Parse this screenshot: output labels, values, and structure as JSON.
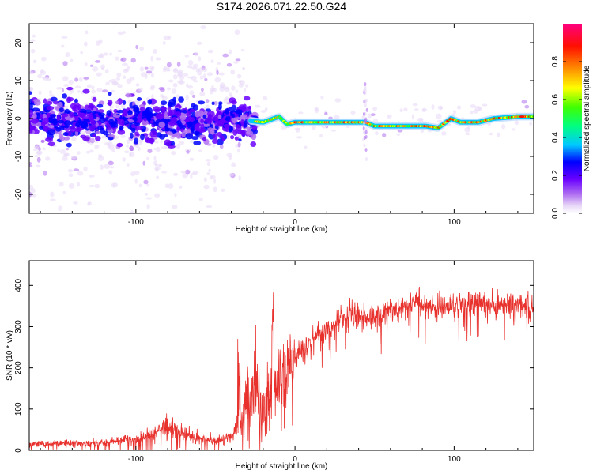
{
  "figure": {
    "title": "S174.2026.071.22.50.G24"
  },
  "chart_data": [
    {
      "type": "heatmap",
      "title": "S174.2026.071.22.50.G24",
      "xlabel": "Height of straight line (km)",
      "ylabel": "Frequency (Hz)",
      "xlim": [
        -167,
        150
      ],
      "ylim": [
        -25,
        25
      ],
      "xticks": [
        -100,
        0,
        100
      ],
      "xtick_labels": [
        "-100",
        "0",
        "100"
      ],
      "yticks": [
        -20,
        -10,
        0,
        10,
        20
      ],
      "ytick_labels": [
        "-20",
        "-10",
        "0",
        "10",
        "20"
      ],
      "colorbar": {
        "label": "Normalized spectral amplitude",
        "range": [
          0,
          1
        ],
        "ticks": [
          0.0,
          0.2,
          0.4,
          0.6,
          0.8
        ],
        "tick_labels": [
          "0.0",
          "0.2",
          "0.4",
          "0.6",
          "0.8"
        ],
        "colors": [
          "#c8a8f0",
          "#8000ff",
          "#0000ff",
          "#00e0ff",
          "#00ff00",
          "#ffff00",
          "#ff8000",
          "#ff0000",
          "#ff0088"
        ]
      },
      "ridge": {
        "description_points_x": [
          -167,
          -130,
          -100,
          -80,
          -60,
          -40,
          -30,
          -20,
          -10,
          -5,
          0,
          20,
          44,
          50,
          70,
          82,
          90,
          98,
          104,
          115,
          125,
          140,
          150
        ],
        "description_points_y": [
          0,
          0,
          0,
          -1,
          -1,
          -1,
          -0.5,
          -1,
          0.5,
          -1.5,
          -1,
          -1,
          -1,
          -2,
          -2,
          -2,
          -2.5,
          0,
          -1,
          -1,
          0,
          0.5,
          0.5
        ]
      }
    },
    {
      "type": "line",
      "xlabel": "Height of straight line (km)",
      "ylabel": "SNR (10 * v/v)",
      "xlim": [
        -167,
        150
      ],
      "ylim": [
        0,
        460
      ],
      "xticks": [
        -100,
        0,
        100
      ],
      "xtick_labels": [
        "-100",
        "0",
        "100"
      ],
      "yticks": [
        0,
        100,
        200,
        300,
        400
      ],
      "ytick_labels": [
        "0",
        "100",
        "200",
        "300",
        "400"
      ],
      "series": [
        {
          "name": "SNR",
          "color": "#e8302c",
          "envelope_x": [
            -167,
            -120,
            -95,
            -85,
            -80,
            -70,
            -55,
            -50,
            -45,
            -40,
            -35,
            -30,
            -25,
            -20,
            -15,
            -10,
            -5,
            0,
            5,
            10,
            20,
            30,
            40,
            50,
            60,
            70,
            80,
            90,
            100,
            110,
            120,
            130,
            140,
            150
          ],
          "envelope_y": [
            15,
            18,
            30,
            45,
            60,
            40,
            25,
            22,
            25,
            35,
            60,
            120,
            180,
            90,
            130,
            170,
            190,
            220,
            245,
            260,
            290,
            320,
            330,
            320,
            340,
            350,
            355,
            350,
            350,
            355,
            355,
            355,
            360,
            345
          ]
        }
      ]
    }
  ]
}
